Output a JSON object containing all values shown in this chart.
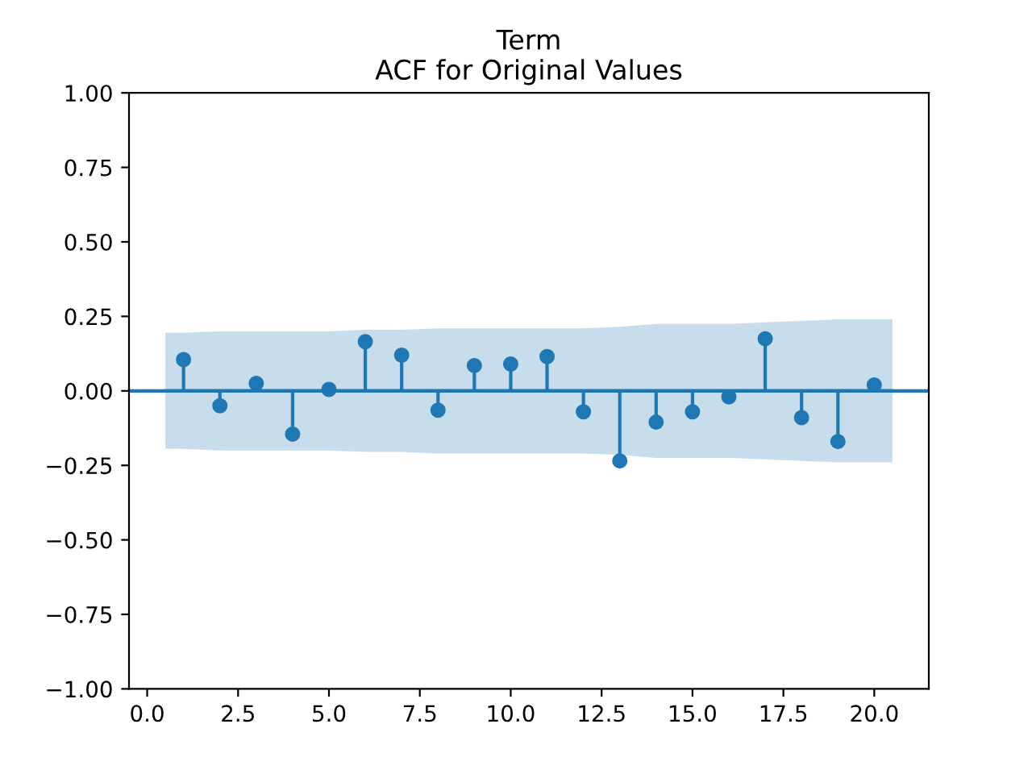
{
  "chart_data": {
    "type": "lollipop",
    "title": "Term\nACF for Original Values",
    "x": [
      1,
      2,
      3,
      4,
      5,
      6,
      7,
      8,
      9,
      10,
      11,
      12,
      13,
      14,
      15,
      16,
      17,
      18,
      19,
      20
    ],
    "series": [
      {
        "color": "#1f77b4",
        "marker": "circle",
        "values": [
          0.105,
          -0.05,
          0.025,
          -0.145,
          0.005,
          0.165,
          0.12,
          -0.065,
          0.085,
          0.09,
          0.115,
          -0.07,
          -0.235,
          -0.105,
          -0.07,
          -0.02,
          0.175,
          -0.09,
          -0.17,
          0.02
        ]
      },
      {
        "type": "line",
        "marker": "none",
        "color": "#1f77b4",
        "x": [
          0.5,
          1,
          2,
          3,
          4,
          5,
          6,
          7,
          8,
          9,
          10,
          11,
          12,
          13,
          14,
          15,
          16,
          17,
          18,
          19,
          20,
          20.5
        ],
        "values": [
          0,
          0,
          0,
          0,
          0,
          0,
          0,
          0,
          0,
          0,
          0,
          0,
          0,
          0,
          0,
          0,
          0,
          0,
          0,
          0,
          0,
          0
        ],
        "lower": [
          -0.195,
          -0.195,
          -0.2,
          -0.2,
          -0.2,
          -0.2,
          -0.205,
          -0.205,
          -0.21,
          -0.21,
          -0.21,
          -0.21,
          -0.21,
          -0.215,
          -0.225,
          -0.225,
          -0.225,
          -0.23,
          -0.235,
          -0.24,
          -0.24,
          -0.24
        ],
        "upper": [
          0.195,
          0.195,
          0.2,
          0.2,
          0.2,
          0.2,
          0.205,
          0.205,
          0.21,
          0.21,
          0.21,
          0.21,
          0.21,
          0.215,
          0.225,
          0.225,
          0.225,
          0.23,
          0.235,
          0.24,
          0.24,
          0.24
        ]
      }
    ],
    "ref_lines": [
      {
        "axis": "y",
        "value": 0,
        "color": "#1f77b4"
      }
    ],
    "grid": false,
    "xlim": [
      -0.5,
      21.5
    ],
    "xticks": [
      {
        "value": 0,
        "label": "0.0"
      },
      {
        "value": 2.5,
        "label": "2.5"
      },
      {
        "value": 5,
        "label": "5.0"
      },
      {
        "value": 7.5,
        "label": "7.5"
      },
      {
        "value": 10,
        "label": "10.0"
      },
      {
        "value": 12.5,
        "label": "12.5"
      },
      {
        "value": 15,
        "label": "15.0"
      },
      {
        "value": 17.5,
        "label": "17.5"
      },
      {
        "value": 20,
        "label": "20.0"
      }
    ],
    "ylim": [
      -1,
      1
    ],
    "yticks": [
      {
        "value": -1,
        "label": "−1.00"
      },
      {
        "value": -0.75,
        "label": "−0.75"
      },
      {
        "value": -0.5,
        "label": "−0.50"
      },
      {
        "value": -0.25,
        "label": "−0.25"
      },
      {
        "value": 0,
        "label": "0.00"
      },
      {
        "value": 0.25,
        "label": "0.25"
      },
      {
        "value": 0.5,
        "label": "0.50"
      },
      {
        "value": 0.75,
        "label": "0.75"
      },
      {
        "value": 1,
        "label": "1.00"
      }
    ]
  }
}
